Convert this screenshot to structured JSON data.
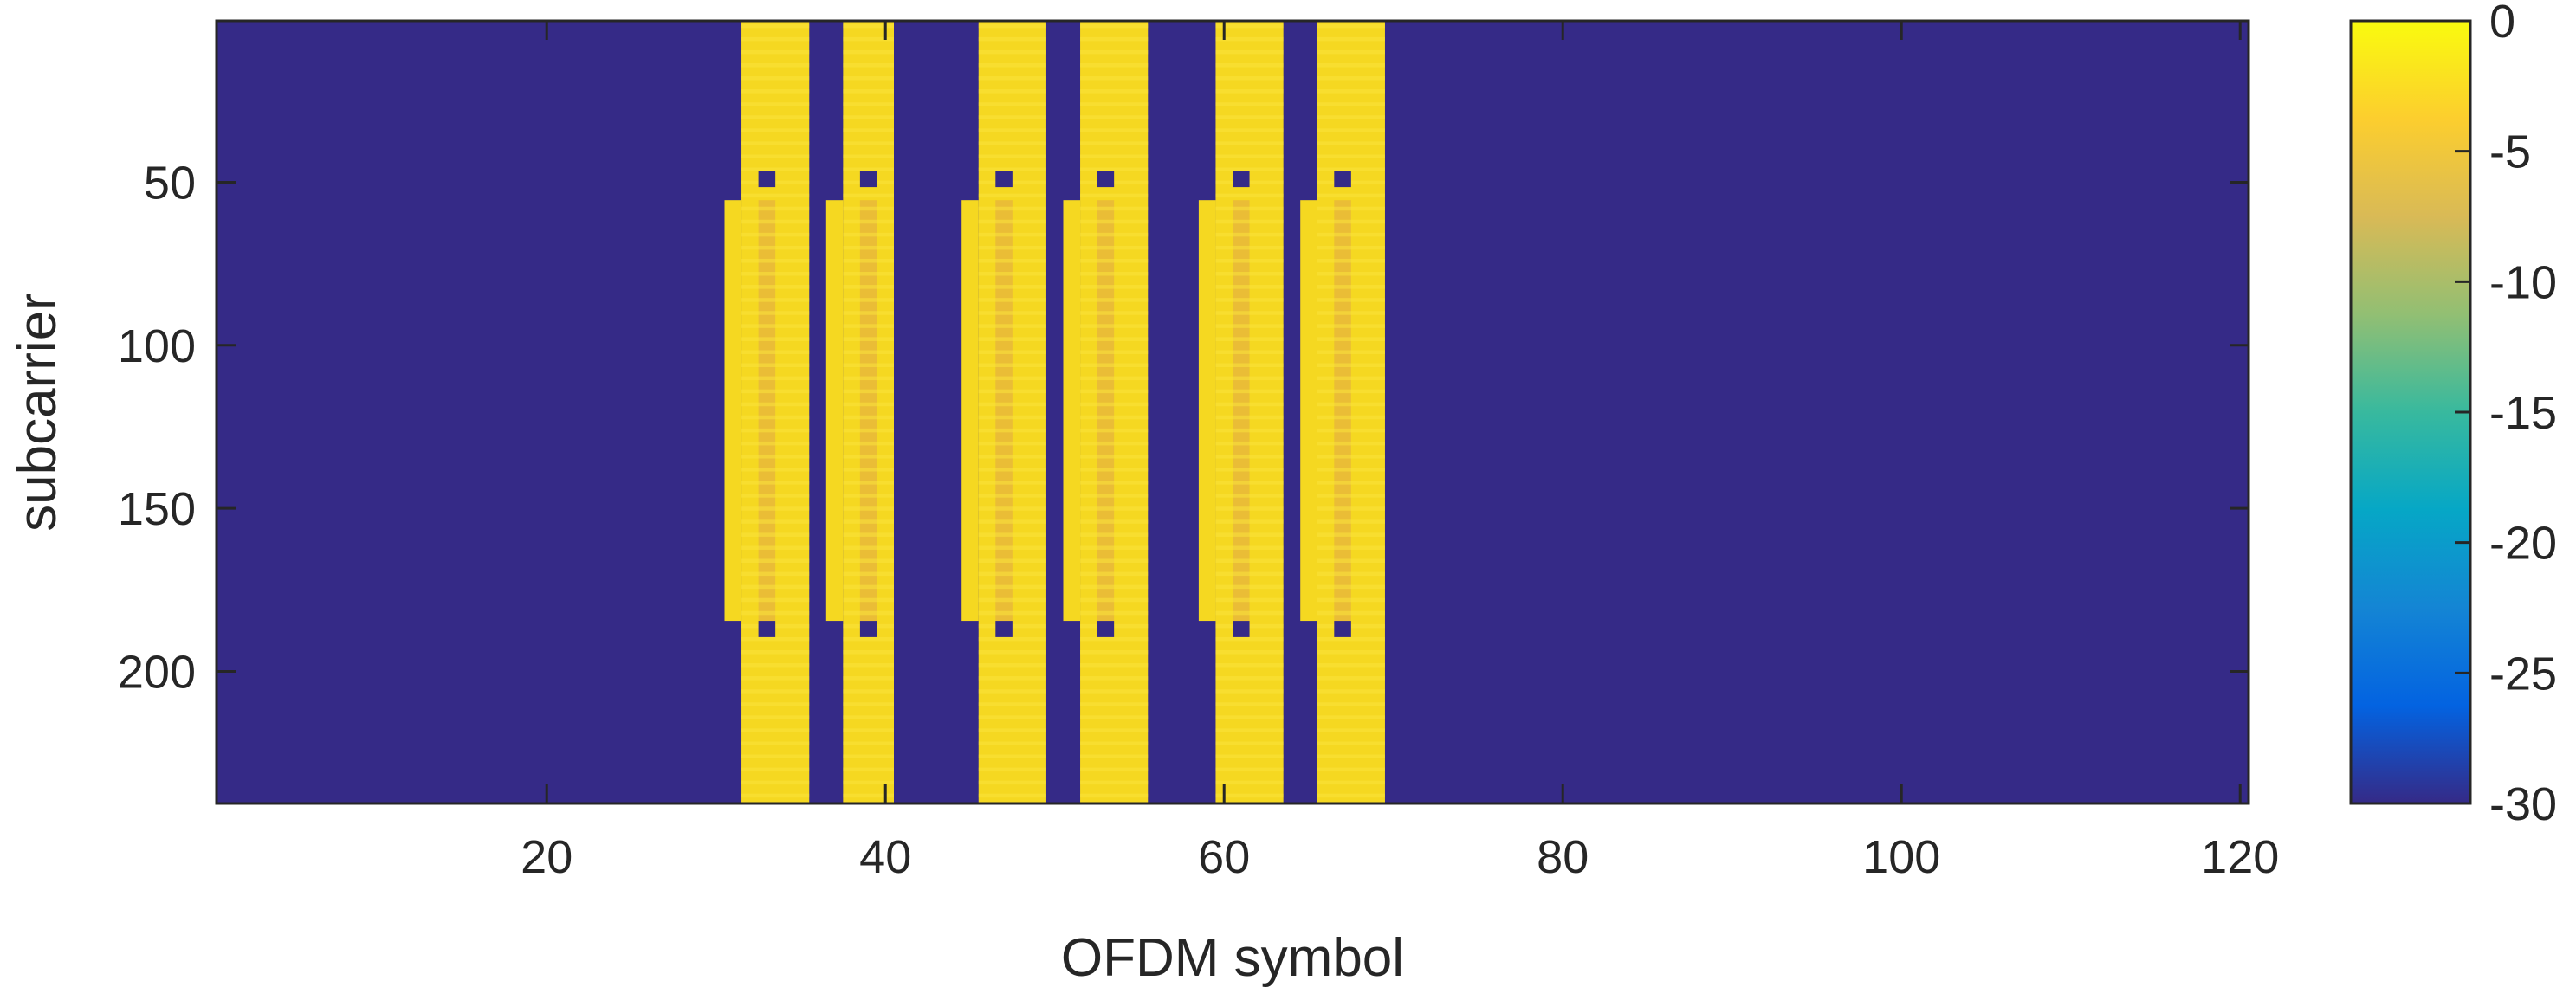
{
  "chart_data": {
    "type": "heatmap",
    "title": "",
    "xlabel": "OFDM symbol",
    "ylabel": "subcarrier",
    "xlim": [
      0.5,
      120.5
    ],
    "ylim": [
      0.5,
      240.5
    ],
    "y_direction": "reversed",
    "xticks": [
      20,
      40,
      60,
      80,
      100,
      120
    ],
    "yticks": [
      50,
      100,
      150,
      200
    ],
    "colormap": "parula",
    "colorbar": {
      "range": [
        -30,
        0
      ],
      "ticks": [
        0,
        -5,
        -10,
        -15,
        -20,
        -25,
        -30
      ],
      "placement": "right"
    },
    "background_value_dB": -30,
    "active_symbol_groups": [
      {
        "symbols": [
          32,
          33,
          34,
          35
        ],
        "wide_subcarriers": [
          1,
          240
        ],
        "extended_subcarriers": [
          56,
          184
        ],
        "notch_subcarriers": [
          47,
          51
        ],
        "notch_subcarriers_lower": [
          185,
          189
        ]
      },
      {
        "symbols": [
          38,
          39,
          40
        ],
        "wide_subcarriers": [
          1,
          240
        ],
        "extended_subcarriers": [
          56,
          184
        ],
        "notch_subcarriers": [
          47,
          51
        ],
        "notch_subcarriers_lower": [
          185,
          189
        ]
      },
      {
        "symbols": [
          46,
          47,
          48,
          49
        ],
        "wide_subcarriers": [
          1,
          240
        ],
        "extended_subcarriers": [
          56,
          184
        ],
        "notch_subcarriers": [
          47,
          51
        ],
        "notch_subcarriers_lower": [
          185,
          189
        ]
      },
      {
        "symbols": [
          52,
          53,
          54,
          55
        ],
        "wide_subcarriers": [
          1,
          240
        ],
        "extended_subcarriers": [
          56,
          184
        ],
        "notch_subcarriers": [
          47,
          51
        ],
        "notch_subcarriers_lower": [
          185,
          189
        ]
      },
      {
        "symbols": [
          60,
          61,
          62,
          63
        ],
        "wide_subcarriers": [
          1,
          240
        ],
        "extended_subcarriers": [
          56,
          184
        ],
        "notch_subcarriers": [
          47,
          51
        ],
        "notch_subcarriers_lower": [
          185,
          189
        ]
      },
      {
        "symbols": [
          66,
          67,
          68,
          69
        ],
        "wide_subcarriers": [
          1,
          240
        ],
        "extended_subcarriers": [
          56,
          184
        ],
        "notch_subcarriers": [
          47,
          51
        ],
        "notch_subcarriers_lower": [
          185,
          189
        ]
      }
    ],
    "active_level_dB": [
      0,
      -3
    ],
    "center_level_dB": -5,
    "grid": false,
    "legend": "none"
  },
  "colors": {
    "background_cell": "#352a87",
    "active_cell": "#f5d821",
    "active_cell_alt": "#f9e43d",
    "center_cell": "#e8b93a",
    "axis": "#262626"
  }
}
